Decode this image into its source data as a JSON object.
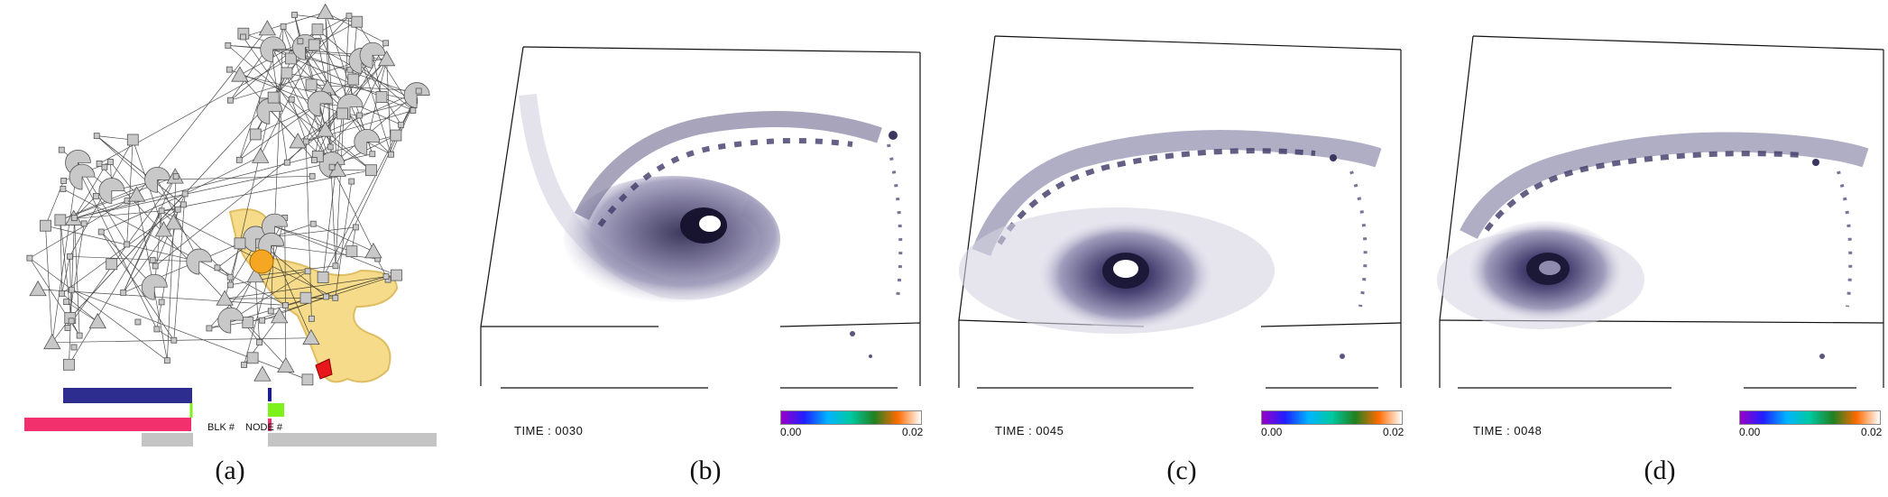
{
  "captions": [
    "(a)",
    "(b)",
    "(c)",
    "(d)"
  ],
  "graph_panel": {
    "labels": {
      "blk": "BLK #",
      "node": "NODE #"
    },
    "colors": {
      "node_fill": "#c8c8c8",
      "edge": "#222222",
      "highlight": "#f5d776",
      "highlight_stroke": "#d9b24a",
      "node_orange": "#f5a623",
      "node_red": "#e8171c",
      "bar_navy": "#2d2d8f",
      "bar_pink": "#f2306e",
      "bar_gray": "#c4c4c4",
      "bar_green": "#7cf21a",
      "bar_dark": "#1a1aa0"
    }
  },
  "volume_panels": [
    {
      "time": "TIME : 0030",
      "cb_min": "0.00",
      "cb_max": "0.02"
    },
    {
      "time": "TIME : 0045",
      "cb_min": "0.00",
      "cb_max": "0.02"
    },
    {
      "time": "TIME : 0048",
      "cb_min": "0.00",
      "cb_max": "0.02"
    }
  ],
  "colorbar_gradient": [
    "#9a00c8",
    "#2020ff",
    "#00b4ff",
    "#00c8a0",
    "#208020",
    "#ff6a00",
    "#ffffff"
  ]
}
